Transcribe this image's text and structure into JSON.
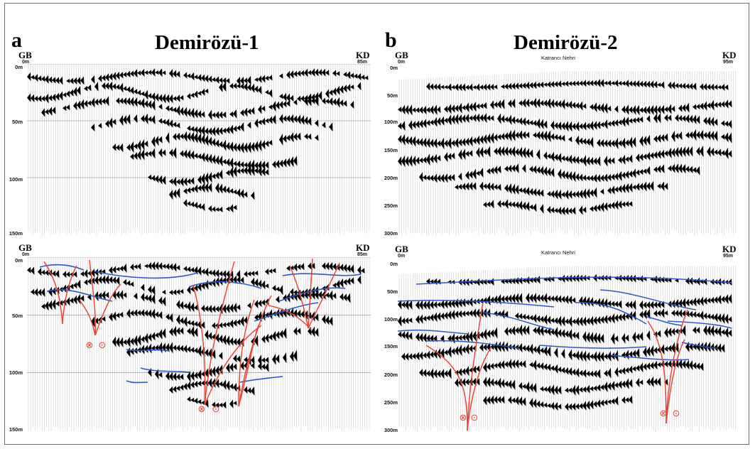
{
  "panels": [
    {
      "letter": "a",
      "title": "Demirözü-1",
      "top_section": {
        "left_dir": "GB",
        "right_dir": "KD",
        "left_dist": "0m",
        "right_dist": "85m",
        "depth_labels": [
          "0m",
          "50m",
          "100m",
          "150m"
        ]
      },
      "bottom_section": {
        "left_dir": "GB",
        "right_dir": "KD",
        "left_dist": "0m",
        "right_dist": "85m",
        "depth_labels": [
          "0m",
          "50m",
          "100m",
          "150m"
        ]
      }
    },
    {
      "letter": "b",
      "title": "Demirözü-2",
      "top_section": {
        "left_dir": "GB",
        "right_dir": "KD",
        "left_dist": "0m",
        "right_dist": "95m",
        "river_label": "Katrancı Nehri",
        "depth_labels": [
          "0m",
          "50m",
          "100m",
          "150m",
          "200m",
          "250m",
          "300m"
        ]
      },
      "bottom_section": {
        "left_dir": "GB",
        "right_dir": "KD",
        "left_dist": "0m",
        "right_dist": "95m",
        "river_label": "Katrancı Nehri",
        "depth_labels": [
          "0m",
          "50m",
          "100m",
          "150m",
          "200m",
          "250m",
          "300m"
        ]
      }
    }
  ],
  "colors": {
    "fault_lines": "#e5483a",
    "horizon_lines": "#2b57c9",
    "seismic_fill": "#000000"
  },
  "symbols": {
    "fault_into_page": "⊗",
    "fault_out_of_page": "⊙"
  }
}
